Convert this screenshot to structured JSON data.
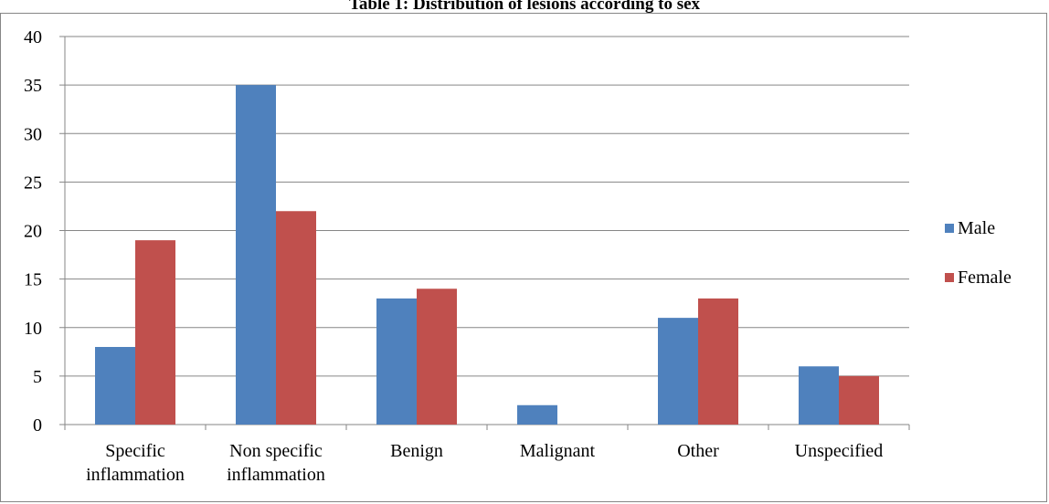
{
  "chart_data": {
    "type": "bar",
    "title": "Table 1: Distribution of lesions according to sex",
    "categories": [
      [
        "Specific",
        "inflammation"
      ],
      [
        "Non specific",
        "inflammation"
      ],
      [
        "Benign"
      ],
      [
        "Malignant"
      ],
      [
        "Other"
      ],
      [
        "Unspecified"
      ]
    ],
    "series": [
      {
        "name": "Male",
        "color": "#4F81BD",
        "values": [
          8,
          35,
          13,
          2,
          11,
          6
        ]
      },
      {
        "name": "Female",
        "color": "#C0504D",
        "values": [
          19,
          22,
          14,
          0,
          13,
          5
        ]
      }
    ],
    "ylim": [
      0,
      40
    ],
    "yticks": [
      0,
      5,
      10,
      15,
      20,
      25,
      30,
      35,
      40
    ],
    "grid": true,
    "legend_position": "right"
  }
}
